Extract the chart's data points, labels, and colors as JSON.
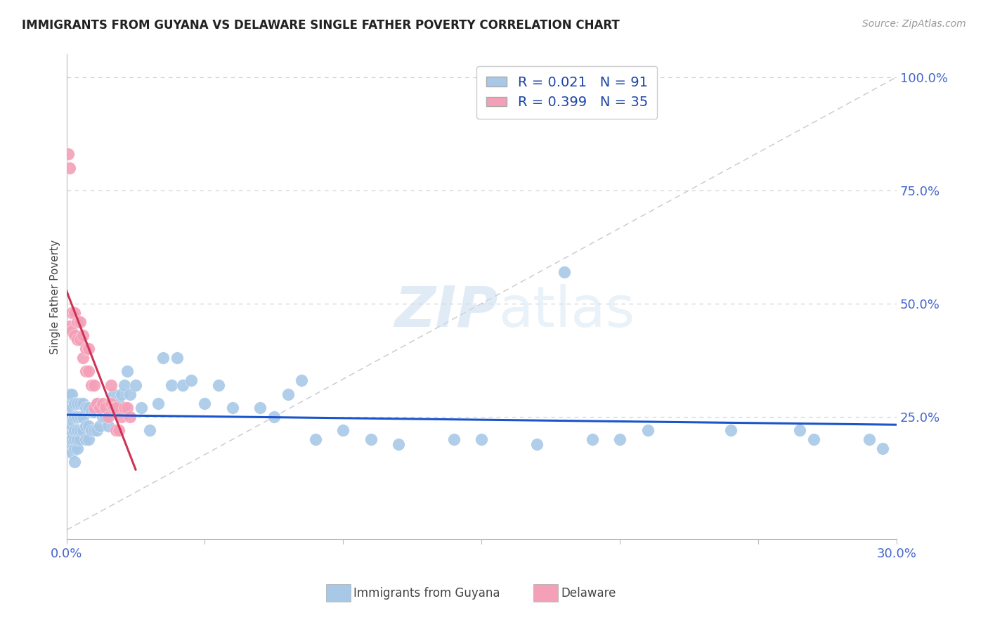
{
  "title": "IMMIGRANTS FROM GUYANA VS DELAWARE SINGLE FATHER POVERTY CORRELATION CHART",
  "source": "Source: ZipAtlas.com",
  "ylabel": "Single Father Poverty",
  "series1_label": "Immigrants from Guyana",
  "series2_label": "Delaware",
  "series1_R": 0.021,
  "series1_N": 91,
  "series2_R": 0.399,
  "series2_N": 35,
  "series1_color": "#A8C8E8",
  "series2_color": "#F4A0B8",
  "trend1_color": "#1A55CC",
  "trend2_color": "#CC3355",
  "refline_color": "#C8C8D0",
  "xlim": [
    0.0,
    0.3
  ],
  "ylim": [
    -0.02,
    1.05
  ],
  "xticks": [
    0.0,
    0.05,
    0.1,
    0.15,
    0.2,
    0.25,
    0.3
  ],
  "xticklabels": [
    "0.0%",
    "",
    "",
    "",
    "",
    "",
    "30.0%"
  ],
  "yticks": [
    0.25,
    0.5,
    0.75,
    1.0
  ],
  "yticklabels": [
    "25.0%",
    "50.0%",
    "75.0%",
    "100.0%"
  ],
  "watermark_zip": "ZIP",
  "watermark_atlas": "atlas",
  "series1_x": [
    0.0005,
    0.001,
    0.001,
    0.001,
    0.001,
    0.001,
    0.001,
    0.0015,
    0.002,
    0.002,
    0.002,
    0.002,
    0.002,
    0.002,
    0.0025,
    0.003,
    0.003,
    0.003,
    0.003,
    0.003,
    0.003,
    0.004,
    0.004,
    0.004,
    0.004,
    0.004,
    0.005,
    0.005,
    0.005,
    0.005,
    0.006,
    0.006,
    0.006,
    0.007,
    0.007,
    0.007,
    0.008,
    0.008,
    0.008,
    0.009,
    0.009,
    0.01,
    0.01,
    0.011,
    0.011,
    0.012,
    0.012,
    0.013,
    0.014,
    0.015,
    0.015,
    0.016,
    0.017,
    0.018,
    0.019,
    0.02,
    0.021,
    0.022,
    0.023,
    0.025,
    0.027,
    0.03,
    0.033,
    0.035,
    0.038,
    0.04,
    0.042,
    0.045,
    0.05,
    0.055,
    0.06,
    0.07,
    0.075,
    0.08,
    0.085,
    0.09,
    0.1,
    0.11,
    0.12,
    0.14,
    0.15,
    0.17,
    0.2,
    0.21,
    0.24,
    0.265,
    0.29,
    0.295,
    0.18,
    0.19,
    0.27
  ],
  "series1_y": [
    0.2,
    0.18,
    0.21,
    0.23,
    0.25,
    0.28,
    0.3,
    0.22,
    0.17,
    0.2,
    0.23,
    0.25,
    0.27,
    0.3,
    0.24,
    0.15,
    0.18,
    0.2,
    0.22,
    0.25,
    0.28,
    0.18,
    0.2,
    0.22,
    0.25,
    0.28,
    0.2,
    0.22,
    0.25,
    0.28,
    0.22,
    0.25,
    0.28,
    0.2,
    0.23,
    0.27,
    0.2,
    0.23,
    0.27,
    0.22,
    0.26,
    0.22,
    0.26,
    0.22,
    0.28,
    0.23,
    0.27,
    0.25,
    0.25,
    0.23,
    0.27,
    0.27,
    0.3,
    0.27,
    0.28,
    0.3,
    0.32,
    0.35,
    0.3,
    0.32,
    0.27,
    0.22,
    0.28,
    0.38,
    0.32,
    0.38,
    0.32,
    0.33,
    0.28,
    0.32,
    0.27,
    0.27,
    0.25,
    0.3,
    0.33,
    0.2,
    0.22,
    0.2,
    0.19,
    0.2,
    0.2,
    0.19,
    0.2,
    0.22,
    0.22,
    0.22,
    0.2,
    0.18,
    0.57,
    0.2,
    0.2
  ],
  "series2_x": [
    0.0005,
    0.001,
    0.001,
    0.002,
    0.002,
    0.003,
    0.003,
    0.004,
    0.004,
    0.005,
    0.005,
    0.006,
    0.006,
    0.007,
    0.007,
    0.008,
    0.008,
    0.009,
    0.01,
    0.01,
    0.011,
    0.012,
    0.013,
    0.014,
    0.015,
    0.016,
    0.016,
    0.017,
    0.018,
    0.018,
    0.019,
    0.02,
    0.021,
    0.022,
    0.023
  ],
  "series2_y": [
    0.83,
    0.45,
    0.8,
    0.44,
    0.48,
    0.43,
    0.48,
    0.42,
    0.46,
    0.42,
    0.46,
    0.38,
    0.43,
    0.35,
    0.4,
    0.35,
    0.4,
    0.32,
    0.27,
    0.32,
    0.28,
    0.27,
    0.28,
    0.27,
    0.25,
    0.28,
    0.32,
    0.27,
    0.22,
    0.27,
    0.22,
    0.25,
    0.27,
    0.27,
    0.25
  ]
}
